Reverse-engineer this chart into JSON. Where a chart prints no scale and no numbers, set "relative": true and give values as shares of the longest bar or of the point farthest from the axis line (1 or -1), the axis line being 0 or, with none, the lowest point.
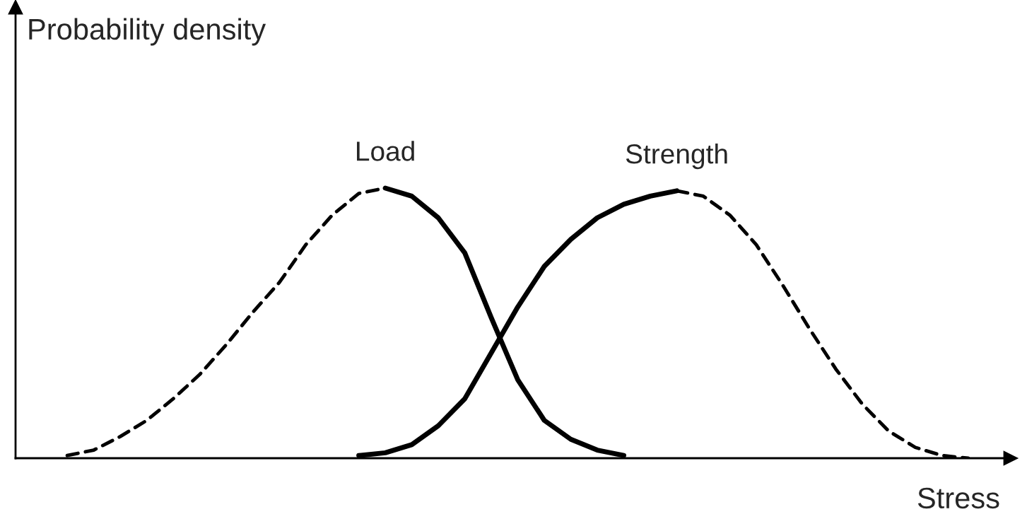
{
  "chart_data": {
    "type": "line",
    "relative": true,
    "xlabel": "Stress",
    "ylabel": "Probability density",
    "categories": [
      null,
      null,
      null,
      null,
      null,
      null,
      null,
      null,
      null,
      null,
      null,
      null,
      null,
      null,
      null,
      null,
      null,
      null,
      null,
      null,
      null,
      null,
      null,
      null,
      null,
      null,
      null,
      null,
      null,
      null,
      null,
      null,
      null,
      null,
      null
    ],
    "series": [
      {
        "name": "Load",
        "color": "#000000",
        "line_style": "dashed",
        "values": [
          0.01,
          0.03,
          0.08,
          0.14,
          0.22,
          0.31,
          0.42,
          0.54,
          0.65,
          0.79,
          0.9,
          0.98,
          1.0,
          null,
          null,
          null,
          null,
          null,
          null,
          null,
          null,
          null,
          null,
          null,
          null,
          null,
          null,
          null,
          null,
          null,
          null,
          null,
          null,
          null,
          null
        ]
      },
      {
        "color": "#000000",
        "line_style": "solid",
        "values": [
          null,
          null,
          null,
          null,
          null,
          null,
          null,
          null,
          null,
          null,
          null,
          null,
          1.0,
          0.97,
          0.89,
          0.76,
          0.52,
          0.29,
          0.14,
          0.07,
          0.03,
          0.01,
          null,
          null,
          null,
          null,
          null,
          null,
          null,
          null,
          null,
          null,
          null,
          null,
          null
        ]
      },
      {
        "color": "#000000",
        "line_style": "solid",
        "values": [
          null,
          null,
          null,
          null,
          null,
          null,
          null,
          null,
          null,
          null,
          null,
          0.01,
          0.02,
          0.05,
          0.12,
          0.22,
          0.39,
          0.56,
          0.71,
          0.81,
          0.89,
          0.94,
          0.97,
          0.99,
          null,
          null,
          null,
          null,
          null,
          null,
          null,
          null,
          null,
          null,
          null
        ]
      },
      {
        "name": "Strength",
        "color": "#000000",
        "line_style": "dashed",
        "values": [
          null,
          null,
          null,
          null,
          null,
          null,
          null,
          null,
          null,
          null,
          null,
          null,
          null,
          null,
          null,
          null,
          null,
          null,
          null,
          null,
          null,
          null,
          null,
          0.99,
          0.97,
          0.9,
          0.79,
          0.64,
          0.48,
          0.33,
          0.2,
          0.1,
          0.04,
          0.01,
          0.0
        ]
      }
    ],
    "legend": false
  }
}
